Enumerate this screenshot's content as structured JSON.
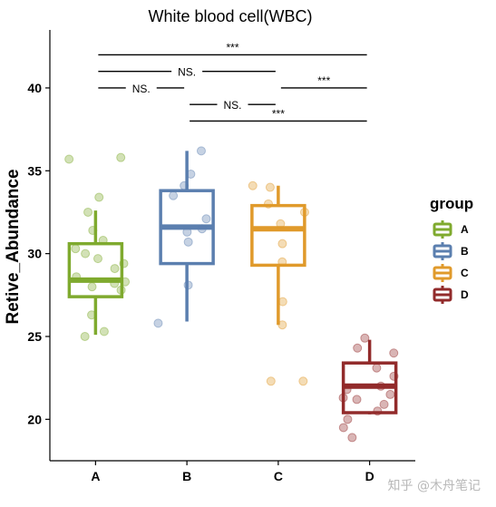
{
  "chart_data": {
    "type": "boxplot",
    "title": "White blood cell(WBC)",
    "xlabel": "",
    "ylabel": "Retive_Abundance",
    "ylim": [
      17.5,
      43.5
    ],
    "yticks": [
      20,
      25,
      30,
      35,
      40
    ],
    "grid": false,
    "legend": {
      "title": "group",
      "position": "right"
    },
    "categories": [
      "A",
      "B",
      "C",
      "D"
    ],
    "groups": [
      {
        "name": "A",
        "color": "#7FAA2E",
        "box": {
          "min": 25.1,
          "q1": 27.4,
          "median": 28.4,
          "q3": 30.6,
          "max": 32.6
        },
        "points": [
          35.8,
          35.7,
          33.4,
          32.5,
          31.4,
          30.8,
          30.3,
          30.0,
          29.7,
          29.4,
          29.1,
          28.6,
          28.3,
          28.2,
          28.0,
          27.8,
          26.3,
          25.3,
          25.0
        ]
      },
      {
        "name": "B",
        "color": "#5B7FAF",
        "box": {
          "min": 25.9,
          "q1": 29.4,
          "median": 31.6,
          "q3": 33.8,
          "max": 36.2
        },
        "points": [
          36.2,
          34.8,
          34.1,
          33.5,
          32.1,
          31.5,
          31.3,
          30.7,
          28.1,
          25.8
        ]
      },
      {
        "name": "C",
        "color": "#E09A2B",
        "box": {
          "min": 25.7,
          "q1": 29.3,
          "median": 31.5,
          "q3": 32.9,
          "max": 34.1
        },
        "points": [
          34.1,
          34.0,
          33.0,
          32.5,
          31.8,
          30.6,
          29.5,
          27.1,
          25.7,
          22.3,
          22.3
        ]
      },
      {
        "name": "D",
        "color": "#922B2B",
        "box": {
          "min": 20.3,
          "q1": 20.4,
          "median": 22.0,
          "q3": 23.4,
          "max": 24.8
        },
        "points": [
          24.9,
          24.3,
          24.0,
          23.1,
          22.6,
          22.0,
          21.8,
          21.5,
          21.3,
          21.2,
          20.9,
          20.5,
          20.0,
          19.5,
          18.9
        ]
      }
    ],
    "comparisons": [
      {
        "from": "A",
        "to": "D",
        "y": 42.0,
        "label": "***"
      },
      {
        "from": "A",
        "to": "C",
        "y": 41.0,
        "label": "NS."
      },
      {
        "from": "C",
        "to": "D",
        "y": 40.0,
        "label": "***"
      },
      {
        "from": "A",
        "to": "B",
        "y": 40.0,
        "label": "NS."
      },
      {
        "from": "B",
        "to": "C",
        "y": 39.0,
        "label": "NS."
      },
      {
        "from": "B",
        "to": "D",
        "y": 38.0,
        "label": "***"
      }
    ]
  },
  "watermark": "知乎 @木舟笔记"
}
